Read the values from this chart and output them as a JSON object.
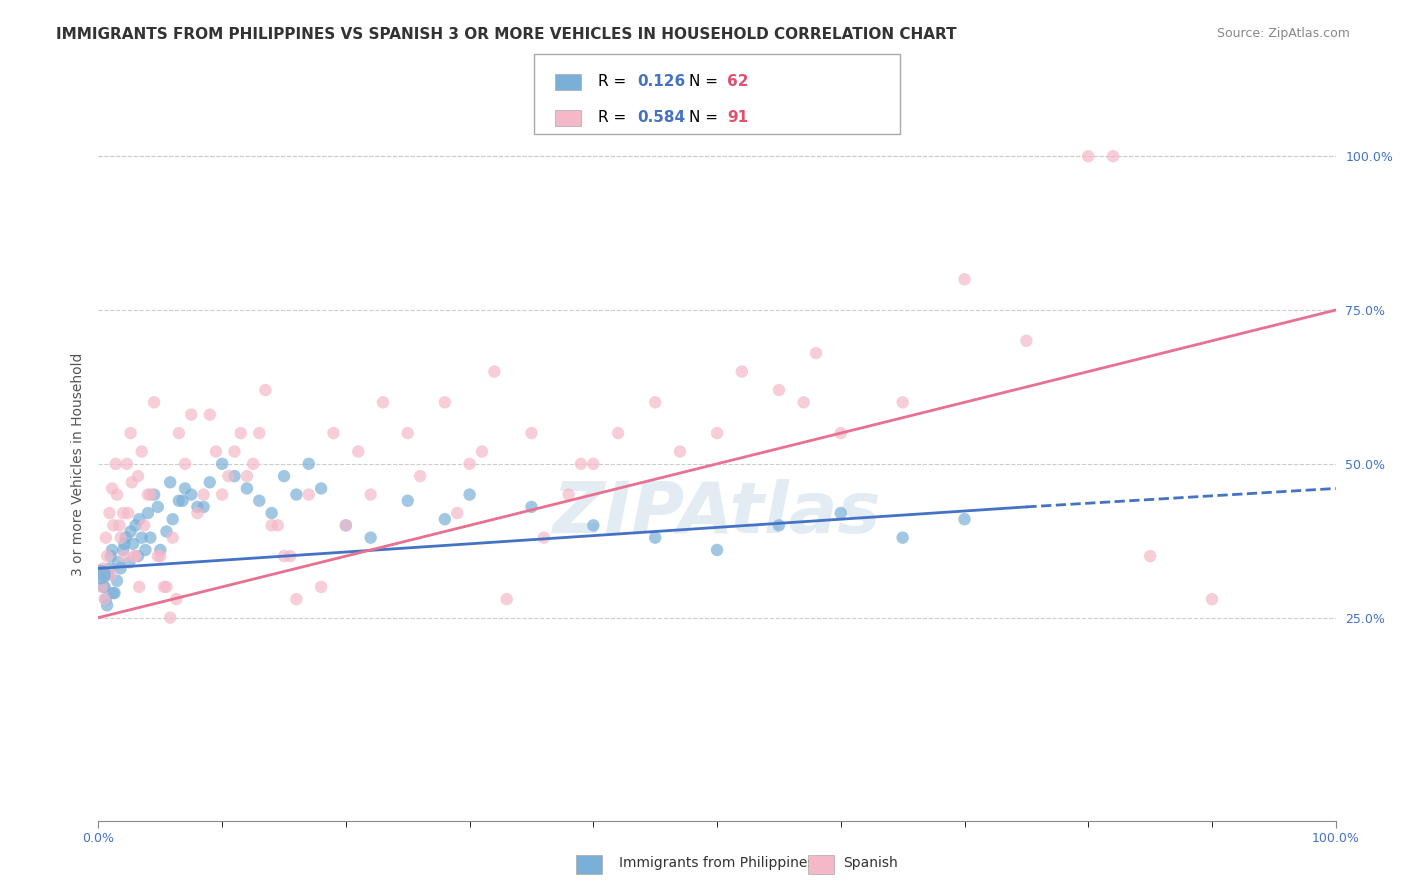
{
  "title": "IMMIGRANTS FROM PHILIPPINES VS SPANISH 3 OR MORE VEHICLES IN HOUSEHOLD CORRELATION CHART",
  "source": "Source: ZipAtlas.com",
  "xlabel": "",
  "ylabel": "3 or more Vehicles in Household",
  "xlim": [
    0,
    100
  ],
  "ylim": [
    -5,
    105
  ],
  "xtick_labels": [
    "0.0%",
    "100.0%"
  ],
  "ytick_labels": [
    "25.0%",
    "50.0%",
    "75.0%",
    "100.0%"
  ],
  "ytick_values": [
    25,
    50,
    75,
    100
  ],
  "legend_entries": [
    {
      "label": "R = 0.126   N = 62",
      "color": "#a8c4e0"
    },
    {
      "label": "R = 0.584   N = 91",
      "color": "#f4b8c8"
    }
  ],
  "bottom_legend": [
    {
      "label": "Immigrants from Philippines",
      "color": "#a8c4e0"
    },
    {
      "label": "Spanish",
      "color": "#f4b8c8"
    }
  ],
  "blue_scatter_x": [
    0.5,
    0.6,
    0.8,
    1.0,
    1.2,
    1.5,
    1.8,
    2.0,
    2.2,
    2.5,
    2.8,
    3.0,
    3.2,
    3.5,
    4.0,
    4.5,
    5.0,
    5.5,
    6.0,
    6.5,
    7.0,
    8.0,
    9.0,
    10.0,
    11.0,
    12.0,
    13.0,
    14.0,
    15.0,
    16.0,
    17.0,
    18.0,
    20.0,
    22.0,
    25.0,
    28.0,
    30.0,
    35.0,
    40.0,
    45.0,
    50.0,
    55.0,
    60.0,
    65.0,
    70.0,
    0.3,
    0.4,
    0.7,
    0.9,
    1.1,
    1.3,
    1.6,
    2.1,
    2.6,
    3.3,
    3.8,
    4.2,
    4.8,
    5.8,
    6.8,
    7.5,
    8.5
  ],
  "blue_scatter_y": [
    30,
    28,
    32,
    35,
    29,
    31,
    33,
    36,
    38,
    34,
    37,
    40,
    35,
    38,
    42,
    45,
    36,
    39,
    41,
    44,
    46,
    43,
    47,
    50,
    48,
    46,
    44,
    42,
    48,
    45,
    50,
    46,
    40,
    38,
    44,
    41,
    45,
    43,
    40,
    38,
    36,
    40,
    42,
    38,
    41,
    32,
    30,
    27,
    33,
    36,
    29,
    34,
    37,
    39,
    41,
    36,
    38,
    43,
    47,
    44,
    45,
    43
  ],
  "pink_scatter_x": [
    0.3,
    0.5,
    0.7,
    1.0,
    1.2,
    1.5,
    1.8,
    2.0,
    2.3,
    2.6,
    2.9,
    3.2,
    3.5,
    4.0,
    4.5,
    5.0,
    5.5,
    6.0,
    6.5,
    7.0,
    8.0,
    9.0,
    10.0,
    11.0,
    12.0,
    13.0,
    14.0,
    15.0,
    16.0,
    18.0,
    20.0,
    22.0,
    25.0,
    28.0,
    30.0,
    32.0,
    35.0,
    38.0,
    40.0,
    45.0,
    50.0,
    55.0,
    58.0,
    60.0,
    65.0,
    70.0,
    75.0,
    80.0,
    82.0,
    85.0,
    90.0,
    0.4,
    0.6,
    0.9,
    1.1,
    1.4,
    1.7,
    2.1,
    2.4,
    2.7,
    3.0,
    3.3,
    3.7,
    4.2,
    4.8,
    5.3,
    5.8,
    6.3,
    7.5,
    8.5,
    9.5,
    10.5,
    11.5,
    12.5,
    13.5,
    14.5,
    15.5,
    17.0,
    19.0,
    21.0,
    23.0,
    26.0,
    29.0,
    31.0,
    33.0,
    36.0,
    39.0,
    42.0,
    47.0,
    52.0,
    57.0
  ],
  "pink_scatter_y": [
    30,
    28,
    35,
    32,
    40,
    45,
    38,
    42,
    50,
    55,
    35,
    48,
    52,
    45,
    60,
    35,
    30,
    38,
    55,
    50,
    42,
    58,
    45,
    52,
    48,
    55,
    40,
    35,
    28,
    30,
    40,
    45,
    55,
    60,
    50,
    65,
    55,
    45,
    50,
    60,
    55,
    62,
    68,
    55,
    60,
    80,
    70,
    100,
    100,
    35,
    28,
    33,
    38,
    42,
    46,
    50,
    40,
    35,
    42,
    47,
    35,
    30,
    40,
    45,
    35,
    30,
    25,
    28,
    58,
    45,
    52,
    48,
    55,
    50,
    62,
    40,
    35,
    45,
    55,
    52,
    60,
    48,
    42,
    52,
    28,
    38,
    50,
    55,
    52,
    65,
    60
  ],
  "blue_line_x": [
    0,
    100
  ],
  "blue_line_y": [
    33,
    43
  ],
  "pink_line_x": [
    0,
    100
  ],
  "pink_line_y": [
    25,
    75
  ],
  "blue_color": "#7ab0d8",
  "pink_color": "#f4b8c8",
  "blue_line_color": "#4472c4",
  "pink_line_color": "#e87090",
  "watermark": "ZIPAtlas",
  "watermark_color": "#c8d8e8",
  "title_fontsize": 11,
  "axis_label_fontsize": 10,
  "tick_fontsize": 9,
  "legend_fontsize": 11,
  "r_blue": "0.126",
  "n_blue": "62",
  "r_pink": "0.584",
  "n_pink": "91"
}
